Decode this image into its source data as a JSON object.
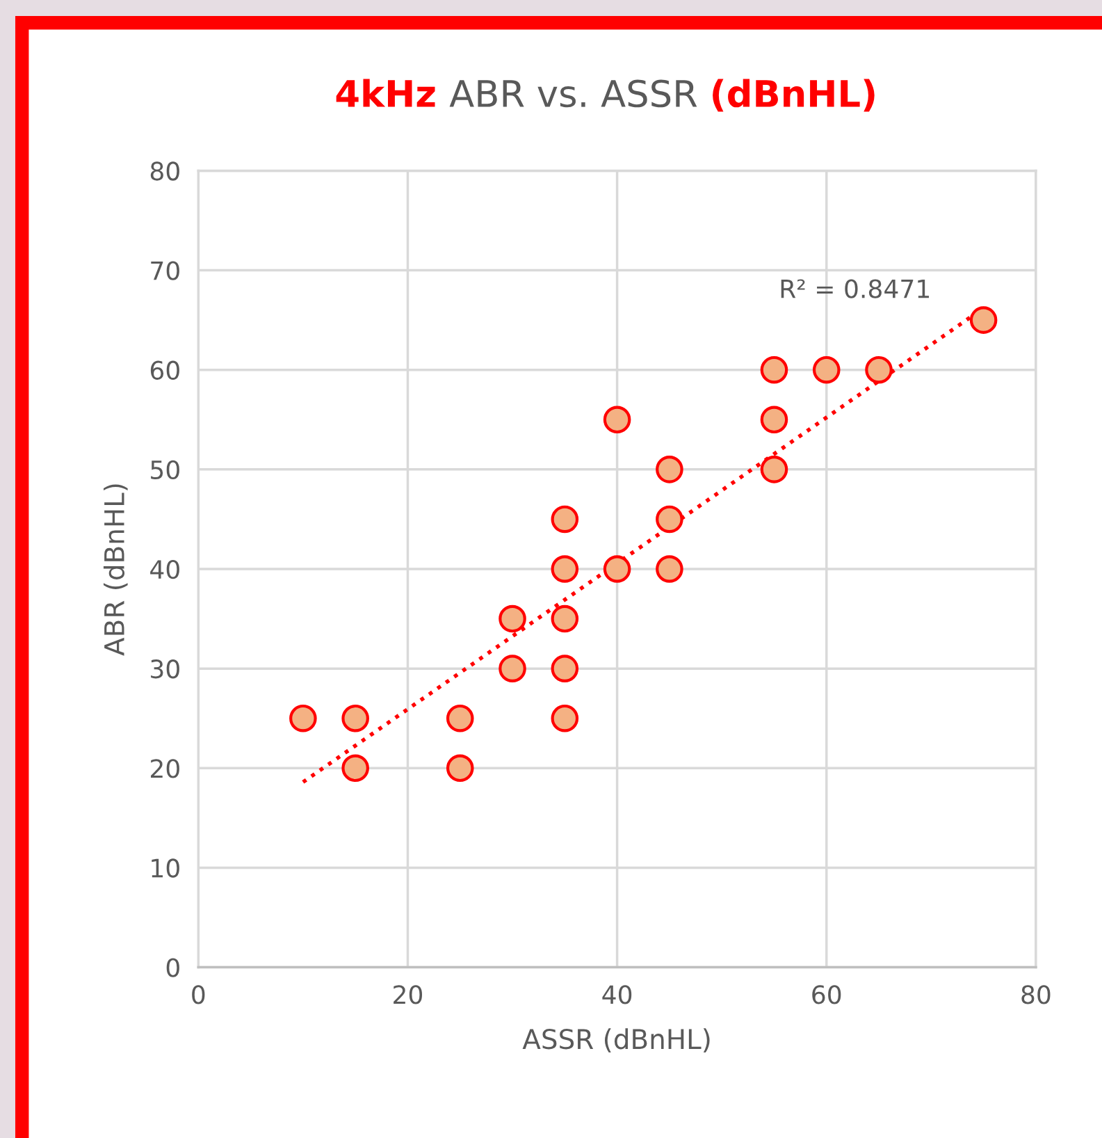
{
  "chart_data": {
    "type": "scatter",
    "title": "4kHz ABR vs. ASSR (dBnHL)",
    "xlabel": "ASSR (dBnHL)",
    "ylabel": "ABR (dBnHL)",
    "series": [
      {
        "marker": "circle",
        "color": "#f4b183",
        "x": [
          10,
          15,
          15,
          25,
          25,
          30,
          30,
          35,
          35,
          35,
          35,
          35,
          40,
          40,
          45,
          45,
          45,
          55,
          55,
          55,
          60,
          65,
          75
        ],
        "values": [
          25,
          25,
          20,
          25,
          20,
          35,
          30,
          45,
          40,
          35,
          30,
          25,
          55,
          40,
          50,
          45,
          40,
          60,
          55,
          50,
          60,
          60,
          65
        ]
      },
      {
        "type": "line",
        "color": "#ff0000",
        "line_style": "dotted",
        "x": [
          10,
          75
        ],
        "values": [
          18.6,
          66.2
        ]
      }
    ],
    "annotations": [
      "R² = 0.8471"
    ],
    "xlim": [
      0,
      80
    ],
    "ylim": [
      0,
      80
    ],
    "xticks": [
      0,
      20,
      40,
      60,
      80
    ],
    "yticks": [
      0,
      10,
      20,
      30,
      40,
      50,
      60,
      70,
      80
    ],
    "grid": true
  }
}
